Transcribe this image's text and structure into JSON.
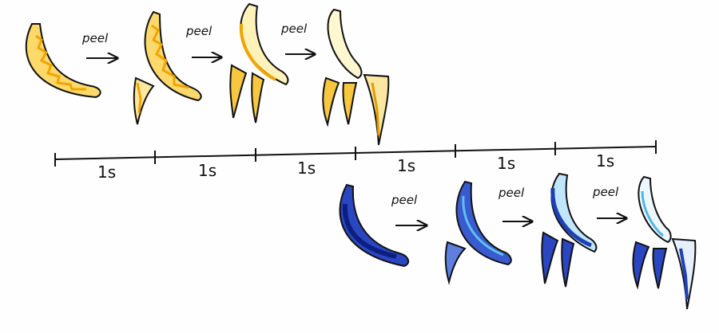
{
  "arrow_label": "peel",
  "timeline": {
    "segment_label": "1s",
    "segments": [
      "1s",
      "1s",
      "1s",
      "1s",
      "1s",
      "1s"
    ]
  },
  "rows": [
    {
      "name": "yellow-sequence",
      "fill": "#f5b21a",
      "pale": "#fff4c2",
      "stages": 4
    },
    {
      "name": "blue-sequence",
      "fill": "#1f3fb5",
      "accent": "#4fb6e8",
      "pale": "#eef7ff",
      "stages": 4
    }
  ]
}
